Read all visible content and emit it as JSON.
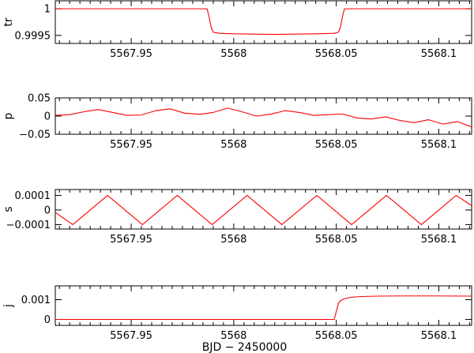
{
  "chart_data": [
    {
      "type": "line",
      "ylabel": "tr",
      "xlim": [
        5567.913,
        5568.116
      ],
      "ylim": [
        0.99935,
        1.00015
      ],
      "xticks": [
        {
          "value": 5567.95,
          "label": "5567.95"
        },
        {
          "value": 5568.0,
          "label": "5568"
        },
        {
          "value": 5568.05,
          "label": "5568.05"
        },
        {
          "value": 5568.1,
          "label": "5568.1"
        }
      ],
      "yticks": [
        {
          "value": 1.0,
          "label": "1"
        },
        {
          "value": 0.9995,
          "label": "0.9995"
        }
      ],
      "series": [
        {
          "color": "#ff0000",
          "x": [
            5567.913,
            5567.95,
            5567.975,
            5567.987,
            5567.988,
            5567.989,
            5567.99,
            5567.993,
            5568.0,
            5568.02,
            5568.04,
            5568.049,
            5568.051,
            5568.052,
            5568.053,
            5568.054,
            5568.08,
            5568.116
          ],
          "y": [
            1.0,
            1.0,
            1.0,
            1.0,
            0.99985,
            0.99965,
            0.99956,
            0.99954,
            0.99953,
            0.99952,
            0.99953,
            0.99954,
            0.99956,
            0.99965,
            0.99985,
            1.0,
            1.0,
            1.0
          ]
        }
      ]
    },
    {
      "type": "line",
      "ylabel": "p",
      "xlim": [
        5567.913,
        5568.116
      ],
      "ylim": [
        -0.05,
        0.05
      ],
      "xticks": [
        {
          "value": 5567.95,
          "label": "5567.95"
        },
        {
          "value": 5568.0,
          "label": "5568"
        },
        {
          "value": 5568.05,
          "label": "5568.05"
        },
        {
          "value": 5568.1,
          "label": "5568.1"
        }
      ],
      "yticks": [
        {
          "value": 0.05,
          "label": "0.05"
        },
        {
          "value": 0.0,
          "label": "0"
        },
        {
          "value": -0.05,
          "label": "−0.05"
        }
      ],
      "series": [
        {
          "color": "#ff0000",
          "x": [
            5567.913,
            5567.92,
            5567.927,
            5567.934,
            5567.941,
            5567.948,
            5567.955,
            5567.962,
            5567.969,
            5567.976,
            5567.983,
            5567.99,
            5567.997,
            5568.004,
            5568.011,
            5568.018,
            5568.025,
            5568.032,
            5568.039,
            5568.046,
            5568.053,
            5568.06,
            5568.067,
            5568.074,
            5568.081,
            5568.088,
            5568.095,
            5568.102,
            5568.109,
            5568.116
          ],
          "y": [
            0.002,
            0.004,
            0.012,
            0.018,
            0.01,
            0.002,
            0.003,
            0.015,
            0.02,
            0.008,
            0.005,
            0.01,
            0.022,
            0.012,
            0.0,
            0.005,
            0.015,
            0.01,
            0.002,
            0.004,
            0.006,
            -0.005,
            -0.008,
            -0.002,
            -0.012,
            -0.018,
            -0.01,
            -0.022,
            -0.015,
            -0.03
          ]
        }
      ]
    },
    {
      "type": "line",
      "ylabel": "s",
      "xlim": [
        5567.913,
        5568.116
      ],
      "ylim": [
        -0.00013,
        0.00014
      ],
      "xticks": [
        {
          "value": 5567.95,
          "label": "5567.95"
        },
        {
          "value": 5568.0,
          "label": "5568"
        },
        {
          "value": 5568.05,
          "label": "5568.05"
        },
        {
          "value": 5568.1,
          "label": "5568.1"
        }
      ],
      "yticks": [
        {
          "value": 0.0001,
          "label": "0.0001"
        },
        {
          "value": 0.0,
          "label": "0"
        },
        {
          "value": -0.0001,
          "label": "−0.0001"
        }
      ],
      "series": [
        {
          "color": "#ff0000",
          "x": [
            5567.913,
            5567.9215,
            5567.93,
            5567.9385,
            5567.947,
            5567.9555,
            5567.964,
            5567.9725,
            5567.981,
            5567.9895,
            5567.998,
            5568.0065,
            5568.015,
            5568.0235,
            5568.032,
            5568.0405,
            5568.049,
            5568.0575,
            5568.066,
            5568.0745,
            5568.083,
            5568.0915,
            5568.1,
            5568.1085,
            5568.116
          ],
          "y": [
            -1.6e-05,
            -0.0001,
            0.0,
            0.0001,
            0.0,
            -0.0001,
            0.0,
            0.0001,
            0.0,
            -0.0001,
            0.0,
            0.0001,
            0.0,
            -0.0001,
            0.0,
            0.0001,
            0.0,
            -0.0001,
            0.0,
            0.0001,
            0.0,
            -0.0001,
            0.0,
            0.0001,
            3e-05
          ]
        }
      ]
    },
    {
      "type": "line",
      "ylabel": "j",
      "xlim": [
        5567.913,
        5568.116
      ],
      "ylim": [
        -0.0003,
        0.0017
      ],
      "xlabel": "BJD − 2450000",
      "xticks": [
        {
          "value": 5567.95,
          "label": "5567.95"
        },
        {
          "value": 5568.0,
          "label": "5568"
        },
        {
          "value": 5568.05,
          "label": "5568.05"
        },
        {
          "value": 5568.1,
          "label": "5568.1"
        }
      ],
      "yticks": [
        {
          "value": 0.001,
          "label": "0.001"
        },
        {
          "value": 0.0,
          "label": "0"
        }
      ],
      "series": [
        {
          "color": "#ff0000",
          "x": [
            5567.913,
            5567.95,
            5568.0,
            5568.045,
            5568.049,
            5568.05,
            5568.051,
            5568.052,
            5568.054,
            5568.057,
            5568.062,
            5568.07,
            5568.08,
            5568.1,
            5568.116
          ],
          "y": [
            0.0,
            0.0,
            0.0,
            0.0,
            0.0,
            0.0004,
            0.0008,
            0.00095,
            0.00105,
            0.00112,
            0.00116,
            0.00118,
            0.00119,
            0.00119,
            0.00118
          ]
        }
      ]
    }
  ]
}
